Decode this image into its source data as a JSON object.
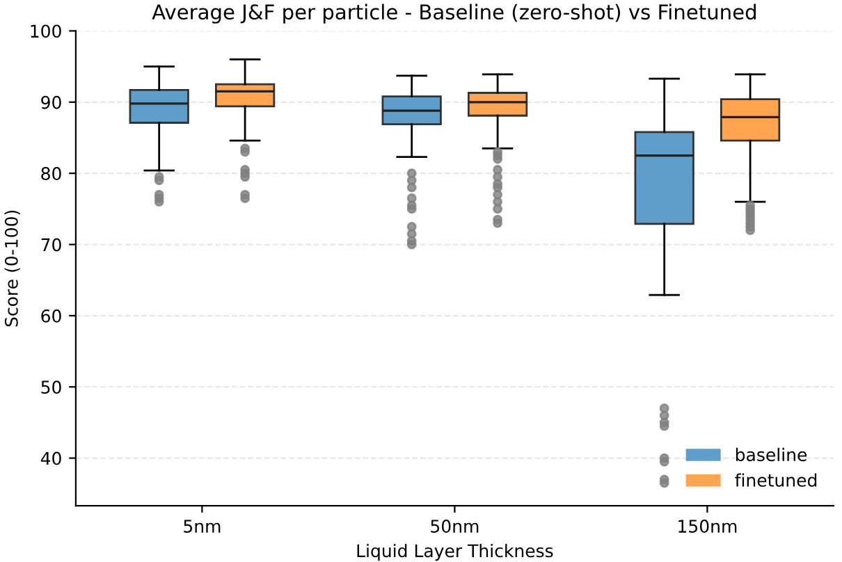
{
  "chart_data": {
    "type": "box",
    "title": "Average J&F per particle - Baseline (zero-shot) vs Finetuned",
    "xlabel": "Liquid Layer Thickness",
    "ylabel": "Score (0-100)",
    "categories": [
      "5nm",
      "50nm",
      "150nm"
    ],
    "series": [
      {
        "name": "baseline",
        "color": "#5f9ecb",
        "boxes": [
          {
            "low": 80.4,
            "q1": 87.1,
            "median": 89.8,
            "q3": 91.7,
            "high": 95.0,
            "outliers": [
              79.5,
              79,
              77,
              76.5,
              76
            ]
          },
          {
            "low": 82.3,
            "q1": 86.9,
            "median": 88.8,
            "q3": 90.8,
            "high": 93.7,
            "outliers": [
              80,
              79,
              78,
              76.5,
              75.5,
              75,
              72.5,
              71.5,
              70.5,
              70
            ]
          },
          {
            "low": 62.9,
            "q1": 72.9,
            "median": 82.5,
            "q3": 85.8,
            "high": 93.3,
            "outliers": [
              47,
              46,
              45,
              44.5,
              40,
              39.5,
              37,
              36.5
            ]
          }
        ]
      },
      {
        "name": "finetuned",
        "color": "#ffa450",
        "boxes": [
          {
            "low": 84.6,
            "q1": 89.4,
            "median": 91.5,
            "q3": 92.5,
            "high": 96.0,
            "outliers": [
              83.5,
              83,
              80.5,
              80,
              79.5,
              77,
              76.5
            ]
          },
          {
            "low": 83.5,
            "q1": 88.1,
            "median": 90.0,
            "q3": 91.3,
            "high": 93.9,
            "outliers": [
              83,
              82.5,
              82,
              80.5,
              79.5,
              78.5,
              78,
              77,
              76,
              75,
              73.5,
              73
            ]
          },
          {
            "low": 76.0,
            "q1": 84.6,
            "median": 87.9,
            "q3": 90.4,
            "high": 93.9,
            "outliers": [
              75.5,
              75,
              74.5,
              74,
              73.5,
              73,
              72.5,
              72
            ]
          }
        ]
      }
    ],
    "ylim": [
      33.3,
      100
    ],
    "yticks": [
      40,
      50,
      60,
      70,
      80,
      90,
      100
    ],
    "grid": "y",
    "legend": "bottom right"
  }
}
